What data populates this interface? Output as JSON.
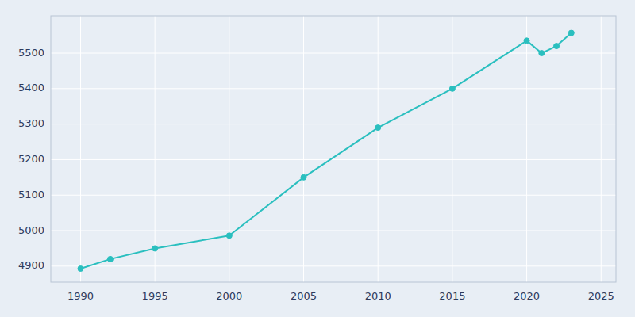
{
  "chart_data": {
    "type": "line",
    "x": [
      1990,
      1992,
      1995,
      2000,
      2005,
      2010,
      2015,
      2020,
      2021,
      2022,
      2023
    ],
    "values": [
      4893,
      4920,
      4950,
      4986,
      5150,
      5290,
      5400,
      5535,
      5500,
      5520,
      5557
    ],
    "color": "#2abfbf",
    "marker": "circle",
    "xlim": [
      1988,
      2026
    ],
    "ylim": [
      4855,
      5605
    ],
    "xticks": [
      1990,
      1995,
      2000,
      2005,
      2010,
      2015,
      2020,
      2025
    ],
    "yticks": [
      4900,
      5000,
      5100,
      5200,
      5300,
      5400,
      5500
    ],
    "grid": true
  }
}
